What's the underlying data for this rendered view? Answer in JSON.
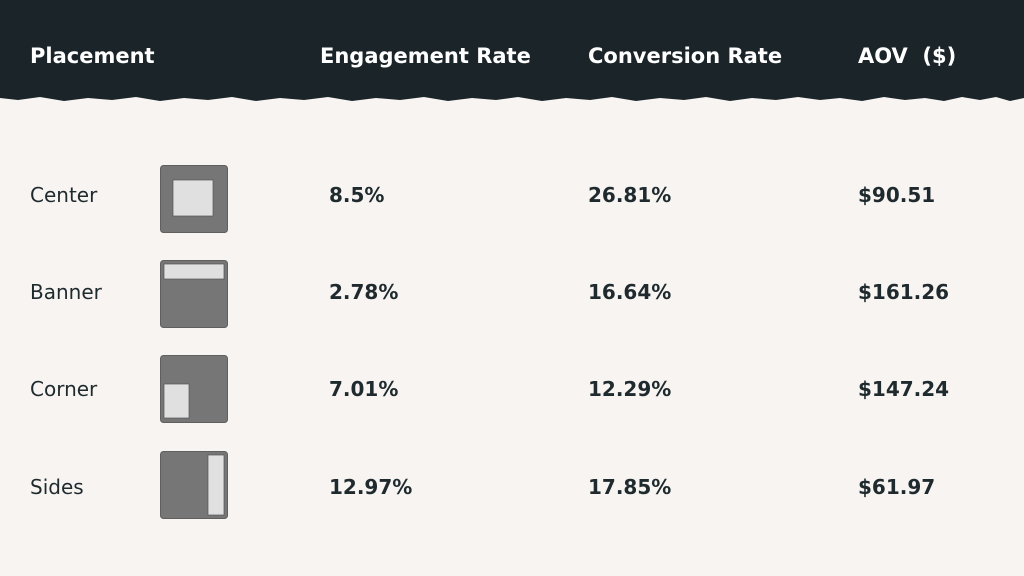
{
  "table": {
    "header": [
      "Placement",
      "Engagement Rate",
      "Conversion Rate",
      "AOV  ($)"
    ],
    "rows": [
      [
        "Center",
        "8.5%",
        "26.81%",
        "$90.51"
      ],
      [
        "Banner",
        "2.78%",
        "16.64%",
        "$161.26"
      ],
      [
        "Corner",
        "7.01%",
        "12.29%",
        "$147.24"
      ],
      [
        "Sides",
        "12.97%",
        "17.85%",
        "$61.97"
      ]
    ]
  }
}
